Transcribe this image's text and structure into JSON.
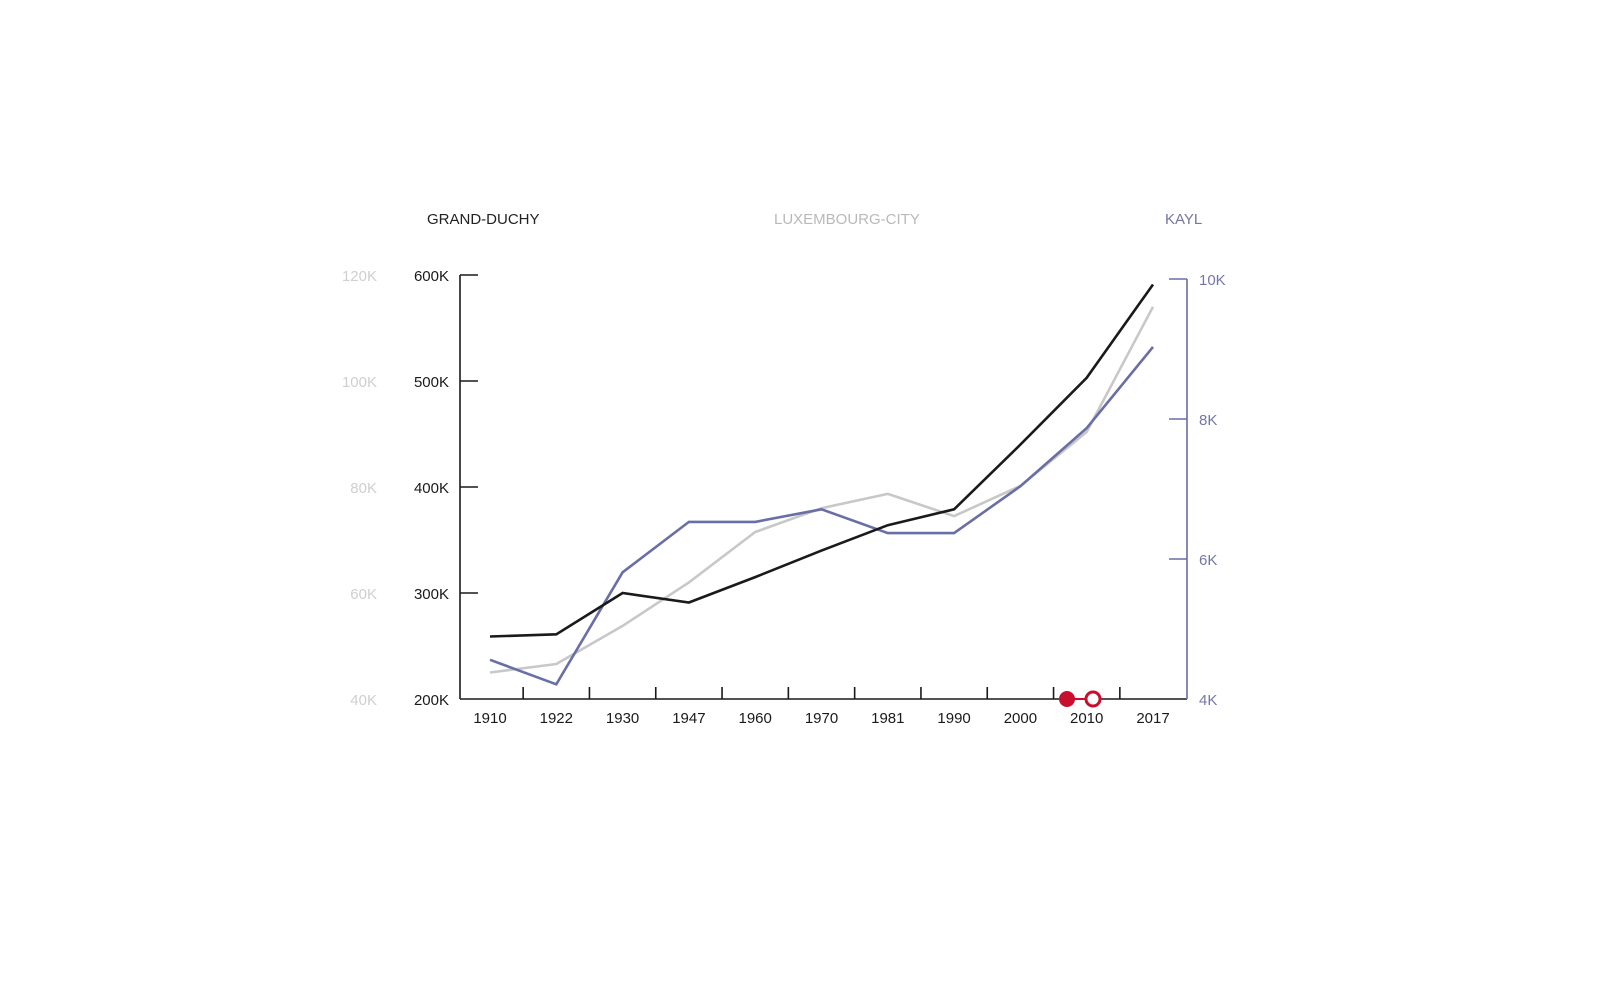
{
  "chart_data": {
    "type": "line",
    "title": "",
    "categories": [
      "1910",
      "1922",
      "1930",
      "1947",
      "1960",
      "1970",
      "1981",
      "1990",
      "2000",
      "2010",
      "2017"
    ],
    "series": [
      {
        "name": "GRAND-DUCHY",
        "axis": "left-outer-black",
        "color": "#1a1a1a",
        "label_color": "#222222",
        "values": [
          259000,
          261000,
          300000,
          291000,
          315000,
          340000,
          364000,
          379000,
          440000,
          503000,
          591000
        ]
      },
      {
        "name": "LUXEMBOURG-CITY",
        "axis": "left-gray",
        "color": "#c8c8c8",
        "label_color": "#b9b9b9",
        "values": [
          45000,
          46600,
          53800,
          62000,
          71500,
          76000,
          78700,
          74500,
          80200,
          90400,
          114000
        ]
      },
      {
        "name": "KAYL",
        "axis": "right",
        "color": "#6a6ea6",
        "label_color": "#7477a6",
        "values": [
          4560,
          4210,
          5810,
          6530,
          6530,
          6710,
          6370,
          6370,
          7040,
          7870,
          9030
        ]
      }
    ],
    "axes": {
      "grand_duchy": {
        "ylim": [
          200000,
          600000
        ],
        "ticks": [
          "200K",
          "300K",
          "400K",
          "500K",
          "600K"
        ],
        "color": "#1a1a1a"
      },
      "luxembourg_city": {
        "ylim": [
          40000,
          120000
        ],
        "ticks": [
          "40K",
          "60K",
          "80K",
          "100K",
          "120K"
        ],
        "color": "#c8c8c8"
      },
      "kayl": {
        "ylim": [
          4000,
          10000
        ],
        "ticks": [
          "4K",
          "6K",
          "8K",
          "10K"
        ],
        "color": "#6a6ea6"
      }
    },
    "markers": {
      "color": "#c8102e",
      "items": [
        "filled",
        "open"
      ]
    },
    "grid": false,
    "legend": "top"
  }
}
